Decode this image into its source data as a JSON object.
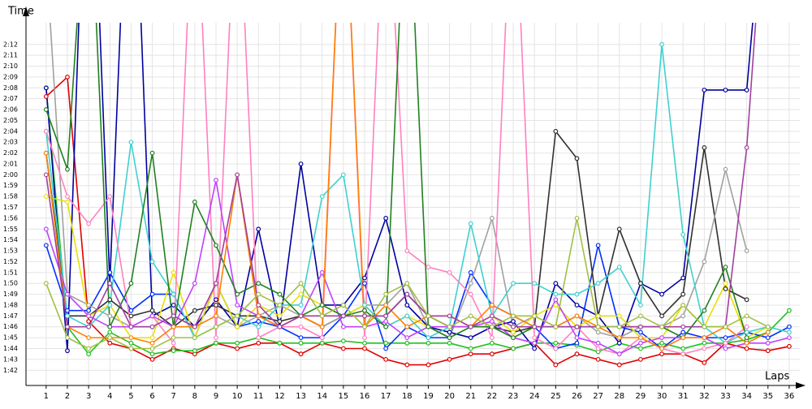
{
  "chart_data": {
    "type": "line",
    "y_label": "Time",
    "x_label": "Laps",
    "x": [
      1,
      2,
      3,
      4,
      5,
      6,
      7,
      8,
      9,
      10,
      11,
      12,
      13,
      14,
      15,
      16,
      17,
      18,
      19,
      20,
      21,
      22,
      23,
      24,
      25,
      26,
      27,
      28,
      29,
      30,
      31,
      32,
      33,
      34,
      35,
      36
    ],
    "xlim": [
      0.05,
      36.5
    ],
    "ylim": [
      100.6,
      134
    ],
    "grid": true,
    "yticks": [
      {
        "value": 102,
        "label": "1:42"
      },
      {
        "value": 103,
        "label": "1:43"
      },
      {
        "value": 104,
        "label": "1:44"
      },
      {
        "value": 105,
        "label": "1:45"
      },
      {
        "value": 106,
        "label": "1:46"
      },
      {
        "value": 107,
        "label": "1:47"
      },
      {
        "value": 108,
        "label": "1:48"
      },
      {
        "value": 109,
        "label": "1:49"
      },
      {
        "value": 110,
        "label": "1:50"
      },
      {
        "value": 111,
        "label": "1:51"
      },
      {
        "value": 112,
        "label": "1:52"
      },
      {
        "value": 113,
        "label": "1:53"
      },
      {
        "value": 114,
        "label": "1:54"
      },
      {
        "value": 115,
        "label": "1:55"
      },
      {
        "value": 116,
        "label": "1:56"
      },
      {
        "value": 117,
        "label": "1:57"
      },
      {
        "value": 118,
        "label": "1:58"
      },
      {
        "value": 119,
        "label": "1:59"
      },
      {
        "value": 120,
        "label": "2:00"
      },
      {
        "value": 121,
        "label": "2:01"
      },
      {
        "value": 122,
        "label": "2:02"
      },
      {
        "value": 123,
        "label": "2:03"
      },
      {
        "value": 124,
        "label": "2:04"
      },
      {
        "value": 125,
        "label": "2:05"
      },
      {
        "value": 126,
        "label": "2:06"
      },
      {
        "value": 127,
        "label": "2:07"
      },
      {
        "value": 128,
        "label": "2:08"
      },
      {
        "value": 129,
        "label": "2:09"
      },
      {
        "value": 130,
        "label": "2:10"
      },
      {
        "value": 131,
        "label": "2:11"
      },
      {
        "value": 132,
        "label": "2:12"
      }
    ],
    "series": [
      {
        "color": "#e00000",
        "values": [
          127.2,
          129.0,
          106.5,
          104.5,
          104.0,
          103.0,
          104.0,
          103.5,
          104.5,
          104.0,
          104.5,
          104.5,
          103.5,
          104.5,
          104.0,
          104.0,
          103.0,
          102.5,
          102.5,
          103.0,
          103.5,
          103.5,
          104.0,
          104.5,
          102.5,
          103.5,
          103.0,
          102.5,
          103.0,
          103.5,
          103.5,
          102.7,
          104.5,
          104.0,
          103.8,
          104.2
        ]
      },
      {
        "color": "#20c020",
        "values": [
          128,
          106,
          103.5,
          105.5,
          104.5,
          103.5,
          103.8,
          103.8,
          104.5,
          104.5,
          105,
          104.5,
          104.5,
          104.5,
          104.7,
          104.5,
          104.5,
          104.5,
          104.5,
          104.5,
          104,
          104.5,
          104,
          104.5,
          104.5,
          104.3,
          103.7,
          104.5,
          104,
          104.5,
          104,
          104.5,
          104.5,
          104.8,
          105.5,
          107.5
        ]
      },
      {
        "color": "#0000a0",
        "values": [
          128,
          103.8,
          160,
          110,
          158,
          107,
          108,
          106,
          108.5,
          106,
          115,
          106,
          121,
          108,
          108,
          110.5,
          116,
          108,
          106,
          105.5,
          105,
          106,
          106.5,
          104,
          110,
          108,
          107,
          104.5,
          110,
          109,
          110.5,
          127.8,
          127.8,
          127.8,
          150,
          null
        ]
      },
      {
        "color": "#0030ff",
        "values": [
          113.5,
          107.5,
          107.5,
          111,
          107.5,
          109,
          109,
          105,
          110,
          106,
          106.5,
          106,
          105,
          105,
          107,
          110,
          104,
          106,
          105,
          105,
          111,
          108,
          107,
          106,
          104,
          104.5,
          113.5,
          106,
          105.5,
          104,
          105.5,
          105,
          105,
          105.5,
          105,
          106
        ]
      },
      {
        "color": "#303030",
        "values": [
          122,
          107,
          107,
          108.5,
          107,
          107.5,
          106,
          107.5,
          108,
          107,
          107,
          106.5,
          107,
          106,
          107,
          107,
          107,
          109,
          107,
          106,
          106,
          106,
          105.5,
          106,
          124,
          121.5,
          107,
          115,
          110,
          107,
          109,
          122.5,
          109.5,
          108.5,
          null,
          null
        ]
      },
      {
        "color": "#a0a0a0",
        "values": [
          140,
          109,
          108,
          107,
          106,
          106,
          107,
          106,
          107,
          106,
          107,
          108,
          107,
          106,
          107,
          108,
          108,
          110,
          106,
          105,
          110,
          116,
          106,
          107,
          106,
          107,
          105.5,
          105,
          106,
          106,
          107,
          112,
          120.5,
          113,
          null,
          null
        ]
      },
      {
        "color": "#e8e000",
        "values": [
          118,
          117.5,
          107,
          108,
          105,
          105,
          111,
          105,
          110,
          106,
          108,
          107,
          109,
          108,
          107,
          108,
          106,
          107,
          106,
          106,
          106,
          107,
          105.5,
          107,
          108,
          106,
          107,
          107,
          105,
          105,
          108,
          106,
          110,
          105,
          106,
          null
        ]
      },
      {
        "color": "#40d0d0",
        "values": [
          124,
          107,
          106,
          108,
          123,
          112,
          109,
          105,
          106,
          107,
          106,
          108,
          108,
          118,
          120,
          108,
          106,
          107,
          105,
          106,
          115.5,
          107,
          110,
          110,
          109,
          109,
          110,
          111.5,
          108,
          132,
          114.5,
          106,
          104.5,
          105.5,
          106,
          105.5
        ]
      },
      {
        "color": "#ff80c0",
        "values": [
          124,
          118,
          115.5,
          118,
          106,
          107,
          104.5,
          150,
          105,
          150,
          105,
          106,
          106,
          105,
          150,
          105,
          150,
          113,
          111.5,
          111,
          109,
          105,
          150,
          105,
          104,
          106,
          104,
          103.5,
          105,
          104,
          103.5,
          104,
          104.5,
          106,
          null,
          null
        ]
      },
      {
        "color": "#c040ff",
        "values": [
          115,
          109,
          107,
          106,
          106,
          107,
          106,
          110,
          119.5,
          108,
          107,
          106,
          107,
          111,
          106,
          106,
          106.5,
          105,
          106,
          106,
          106,
          106.5,
          105,
          104.5,
          108.5,
          105,
          104.5,
          103.5,
          104.5,
          105,
          105,
          105,
          104,
          104.5,
          104.5,
          105
        ]
      },
      {
        "color": "#208020",
        "values": [
          126,
          120.5,
          150,
          106,
          110,
          122,
          106,
          117.5,
          113.5,
          109,
          110,
          109,
          107,
          108,
          107,
          107.5,
          106,
          150,
          106,
          105,
          106,
          106,
          105,
          106,
          106,
          106,
          106,
          106,
          106,
          106,
          105,
          107.5,
          111.5,
          105,
          null,
          null
        ]
      },
      {
        "color": "#ff8000",
        "values": [
          122,
          106,
          105,
          105,
          105,
          104.5,
          106,
          106,
          107,
          120,
          107,
          106,
          107,
          106,
          150,
          106,
          108,
          106,
          107,
          107,
          106,
          108,
          107,
          106,
          106,
          107,
          106,
          105,
          105,
          104,
          105,
          105,
          106,
          104.5,
          105.5,
          null
        ]
      },
      {
        "color": "#a040a0",
        "values": [
          120,
          106,
          106,
          110,
          106,
          106,
          107,
          106,
          110,
          120,
          108,
          106,
          107,
          107,
          107,
          107,
          107,
          109,
          107,
          107,
          106,
          107,
          106,
          106,
          106,
          106,
          106,
          106,
          106,
          106,
          106,
          106,
          106,
          122.5,
          150,
          null
        ]
      },
      {
        "color": "#a0c040",
        "values": [
          110,
          105,
          104,
          105,
          104,
          104,
          105,
          105,
          106,
          107,
          109,
          108,
          110,
          107,
          108,
          106,
          109,
          110,
          107,
          106,
          107,
          106,
          107,
          107,
          106,
          116,
          106,
          106,
          107,
          106,
          108,
          106,
          106,
          107,
          106,
          null
        ]
      }
    ]
  }
}
